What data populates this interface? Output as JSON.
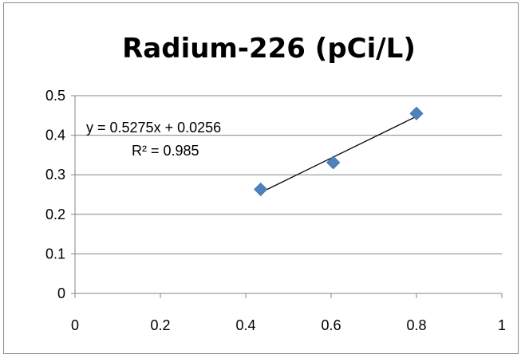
{
  "chart_data": {
    "type": "scatter",
    "title": "Radium-226 (pCi/L)",
    "xlabel": "",
    "ylabel": "",
    "xlim": [
      0,
      1
    ],
    "ylim": [
      0,
      0.5
    ],
    "x_ticks": [
      "0",
      "0.2",
      "0.4",
      "0.6",
      "0.8",
      "1"
    ],
    "y_ticks": [
      "0",
      "0.1",
      "0.2",
      "0.3",
      "0.4",
      "0.5"
    ],
    "grid": "horizontal",
    "legend": "none",
    "series": [
      {
        "points": [
          {
            "x": 0.435,
            "y": 0.263
          },
          {
            "x": 0.605,
            "y": 0.331
          },
          {
            "x": 0.8,
            "y": 0.455
          }
        ],
        "color": "#4f81bd",
        "marker": "diamond"
      }
    ],
    "trendline": {
      "type": "linear",
      "slope": 0.5275,
      "intercept": 0.0256,
      "x_range": [
        0.435,
        0.8
      ],
      "color": "#000000"
    },
    "annotations": {
      "equation": "y = 0.5275x + 0.0256",
      "r_squared": "R² = 0.985"
    }
  }
}
